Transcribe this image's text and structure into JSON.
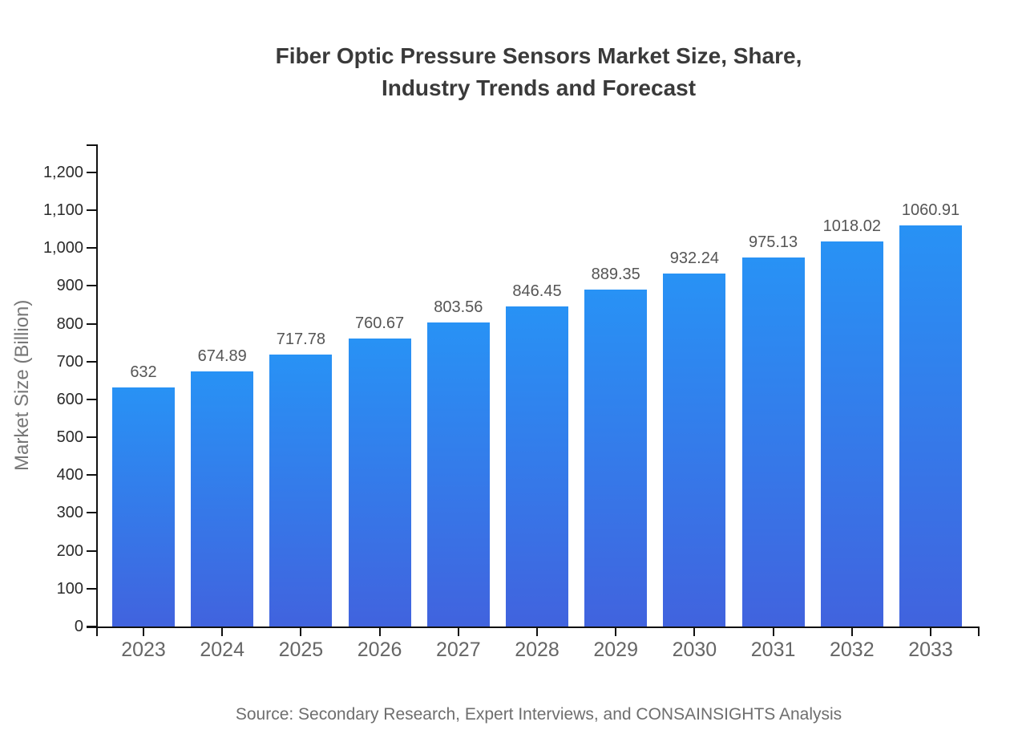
{
  "chart_data": {
    "type": "bar",
    "title": "Fiber Optic Pressure Sensors Market Size, Share, Industry Trends and Forecast",
    "title_lines": [
      "Fiber Optic Pressure Sensors Market Size, Share,",
      "Industry Trends and Forecast"
    ],
    "ylabel": "Market Size (Billion)",
    "xlabel": "",
    "categories": [
      "2023",
      "2024",
      "2025",
      "2026",
      "2027",
      "2028",
      "2029",
      "2030",
      "2031",
      "2032",
      "2033"
    ],
    "values": [
      632,
      674.89,
      717.78,
      760.67,
      803.56,
      846.45,
      889.35,
      932.24,
      975.13,
      1018.02,
      1060.91
    ],
    "value_labels": [
      "632",
      "674.89",
      "717.78",
      "760.67",
      "803.56",
      "846.45",
      "889.35",
      "932.24",
      "975.13",
      "1018.02",
      "1060.91"
    ],
    "y_ticks": [
      "0",
      "100",
      "200",
      "300",
      "400",
      "500",
      "600",
      "700",
      "800",
      "900",
      "1,000",
      "1,100",
      "1,200"
    ],
    "y_tick_interval": 100,
    "ylim": [
      0,
      1274
    ],
    "grid": false,
    "legend": "none",
    "source": "Source: Secondary Research, Expert Interviews, and CONSAINSIGHTS Analysis",
    "colors": {
      "bar_gradient_top": "#2892f5",
      "bar_gradient_bottom": "#4163de",
      "title_text": "#3a3a3a",
      "axis_line": "#111111",
      "y_tick_text": "#2b2b2b",
      "x_tick_text": "#666666",
      "value_label_text": "#555555",
      "ylabel_text": "#777777",
      "source_text": "#6e6e6e"
    }
  }
}
